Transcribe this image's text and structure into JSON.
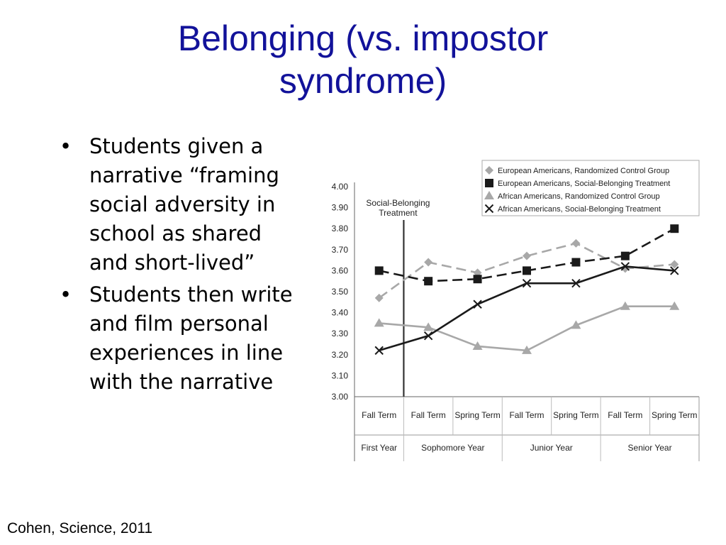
{
  "title_line1": "Belonging (vs. impostor",
  "title_line2": "syndrome)",
  "bullets": [
    "Students given a narrative “framing social adversity in school as shared and short-lived”",
    "Students then write and film personal experiences in line with the narrative"
  ],
  "bullet_glyph": "•",
  "citation": "Cohen, Science, 2011",
  "chart_data": {
    "type": "line",
    "ylim": [
      3.0,
      4.0
    ],
    "yticks": [
      "3.00",
      "3.10",
      "3.20",
      "3.30",
      "3.40",
      "3.50",
      "3.60",
      "3.70",
      "3.80",
      "3.90",
      "4.00"
    ],
    "categories": [
      "Fall Term",
      "Fall Term",
      "Spring Term",
      "Fall Term",
      "Spring Term",
      "Fall Term",
      "Spring Term"
    ],
    "groups": [
      {
        "label": "First Year",
        "span": 1
      },
      {
        "label": "Sophomore Year",
        "span": 2
      },
      {
        "label": "Junior Year",
        "span": 2
      },
      {
        "label": "Senior Year",
        "span": 2
      }
    ],
    "annotation": {
      "line1": "Social-Belonging",
      "line2": "Treatment",
      "position": 0.5
    },
    "legend_position": "top-right",
    "grid": false,
    "series": [
      {
        "name": "European Americans, Randomized Control Group",
        "marker": "diamond",
        "dashed": true,
        "color": "#a8a8a8",
        "values": [
          3.47,
          3.64,
          3.59,
          3.67,
          3.73,
          3.61,
          3.63
        ]
      },
      {
        "name": "European Americans, Social-Belonging Treatment",
        "marker": "square",
        "dashed": true,
        "color": "#1a1a1a",
        "values": [
          3.6,
          3.55,
          3.56,
          3.6,
          3.64,
          3.67,
          3.8
        ]
      },
      {
        "name": "African Americans, Randomized Control Group",
        "marker": "triangle",
        "dashed": false,
        "color": "#a8a8a8",
        "values": [
          3.35,
          3.33,
          3.24,
          3.22,
          3.34,
          3.43,
          3.43
        ]
      },
      {
        "name": "African Americans, Social-Belonging Treatment",
        "marker": "x",
        "dashed": false,
        "color": "#1a1a1a",
        "values": [
          3.22,
          3.29,
          3.44,
          3.54,
          3.54,
          3.62,
          3.6
        ]
      }
    ]
  }
}
